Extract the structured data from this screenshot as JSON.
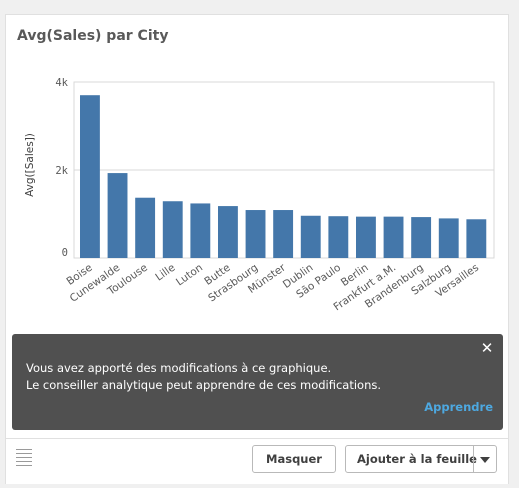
{
  "card": {
    "title": "Avg(Sales) par City"
  },
  "chart_data": {
    "type": "bar",
    "title": "Avg(Sales) par City",
    "xlabel": "",
    "ylabel": "Avg([Sales])",
    "ylim": [
      0,
      4000
    ],
    "yticks": [
      0,
      2000,
      4000
    ],
    "ytick_labels": [
      "0",
      "2k",
      "4k"
    ],
    "categories": [
      "Boise",
      "Cunewalde",
      "Toulouse",
      "Lille",
      "Luton",
      "Butte",
      "Strasbourg",
      "Münster",
      "Dublin",
      "São Paulo",
      "Berlin",
      "Frankfurt a.M.",
      "Brandenburg",
      "Salzburg",
      "Versailles"
    ],
    "values": [
      3700,
      1930,
      1370,
      1290,
      1240,
      1180,
      1090,
      1090,
      960,
      950,
      940,
      940,
      930,
      900,
      880
    ],
    "bar_color": "#4477aa",
    "grid": true,
    "legend": "none"
  },
  "toast": {
    "line1": "Vous avez apporté des modifications à ce graphique.",
    "line2": "Le conseiller analytique peut apprendre de ces modifications.",
    "link": "Apprendre",
    "close": "✕"
  },
  "footer": {
    "hide_label": "Masquer",
    "add_label": "Ajouter à la feuille"
  }
}
